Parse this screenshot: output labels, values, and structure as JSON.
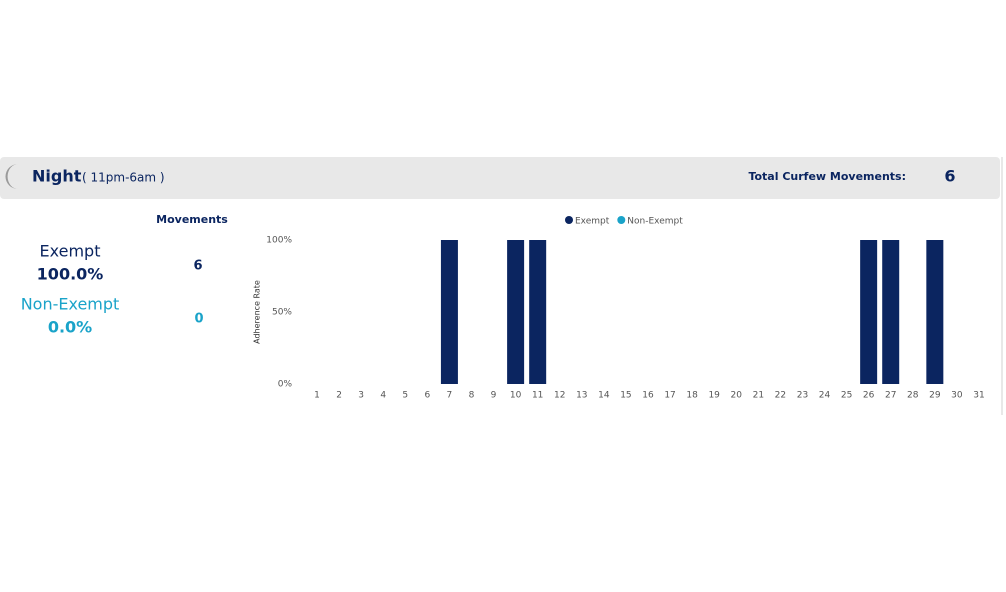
{
  "header": {
    "title": "Night",
    "subtitle": "( 11pm-6am )",
    "total_label": "Total Curfew Movements:",
    "total_value": "6"
  },
  "summary": {
    "heading": "Movements",
    "rows": [
      {
        "label": "Exempt",
        "percent": "100.0%",
        "count": "6"
      },
      {
        "label": "Non-Exempt",
        "percent": "0.0%",
        "count": "0"
      }
    ]
  },
  "chart_data": {
    "type": "bar",
    "stacked": true,
    "y_label": "Adherence Rate",
    "categories": [
      "1",
      "2",
      "3",
      "4",
      "5",
      "6",
      "7",
      "8",
      "9",
      "10",
      "11",
      "12",
      "13",
      "14",
      "15",
      "16",
      "17",
      "18",
      "19",
      "20",
      "21",
      "22",
      "23",
      "24",
      "25",
      "26",
      "27",
      "28",
      "29",
      "30",
      "31"
    ],
    "series": [
      {
        "name": "Exempt",
        "color": "#0b2560",
        "values": [
          null,
          null,
          null,
          null,
          null,
          null,
          100,
          null,
          null,
          100,
          100,
          null,
          null,
          null,
          null,
          null,
          null,
          null,
          null,
          null,
          null,
          null,
          null,
          null,
          null,
          100,
          100,
          null,
          100,
          null,
          null
        ]
      },
      {
        "name": "Non-Exempt",
        "color": "#1aa3c9",
        "values": [
          null,
          null,
          null,
          null,
          null,
          null,
          0,
          null,
          null,
          0,
          0,
          null,
          null,
          null,
          null,
          null,
          null,
          null,
          null,
          null,
          null,
          null,
          null,
          null,
          null,
          0,
          0,
          null,
          0,
          null,
          null
        ]
      }
    ],
    "ylim": [
      0,
      100
    ],
    "yticks": [
      {
        "value": 0,
        "label": "0%"
      },
      {
        "value": 50,
        "label": "50%"
      },
      {
        "value": 100,
        "label": "100%"
      }
    ],
    "legend": "top"
  }
}
